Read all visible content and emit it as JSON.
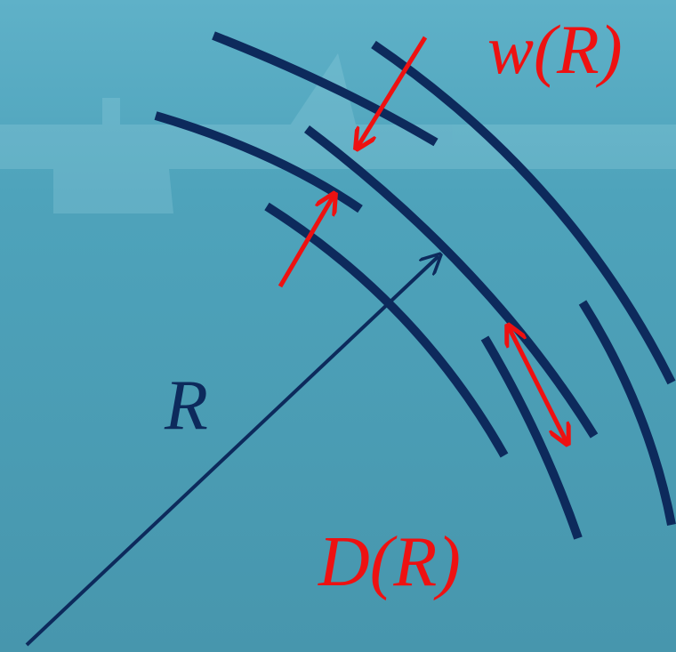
{
  "labels": {
    "width": "w(R)",
    "radius": "R",
    "spacing": "D(R)"
  }
}
